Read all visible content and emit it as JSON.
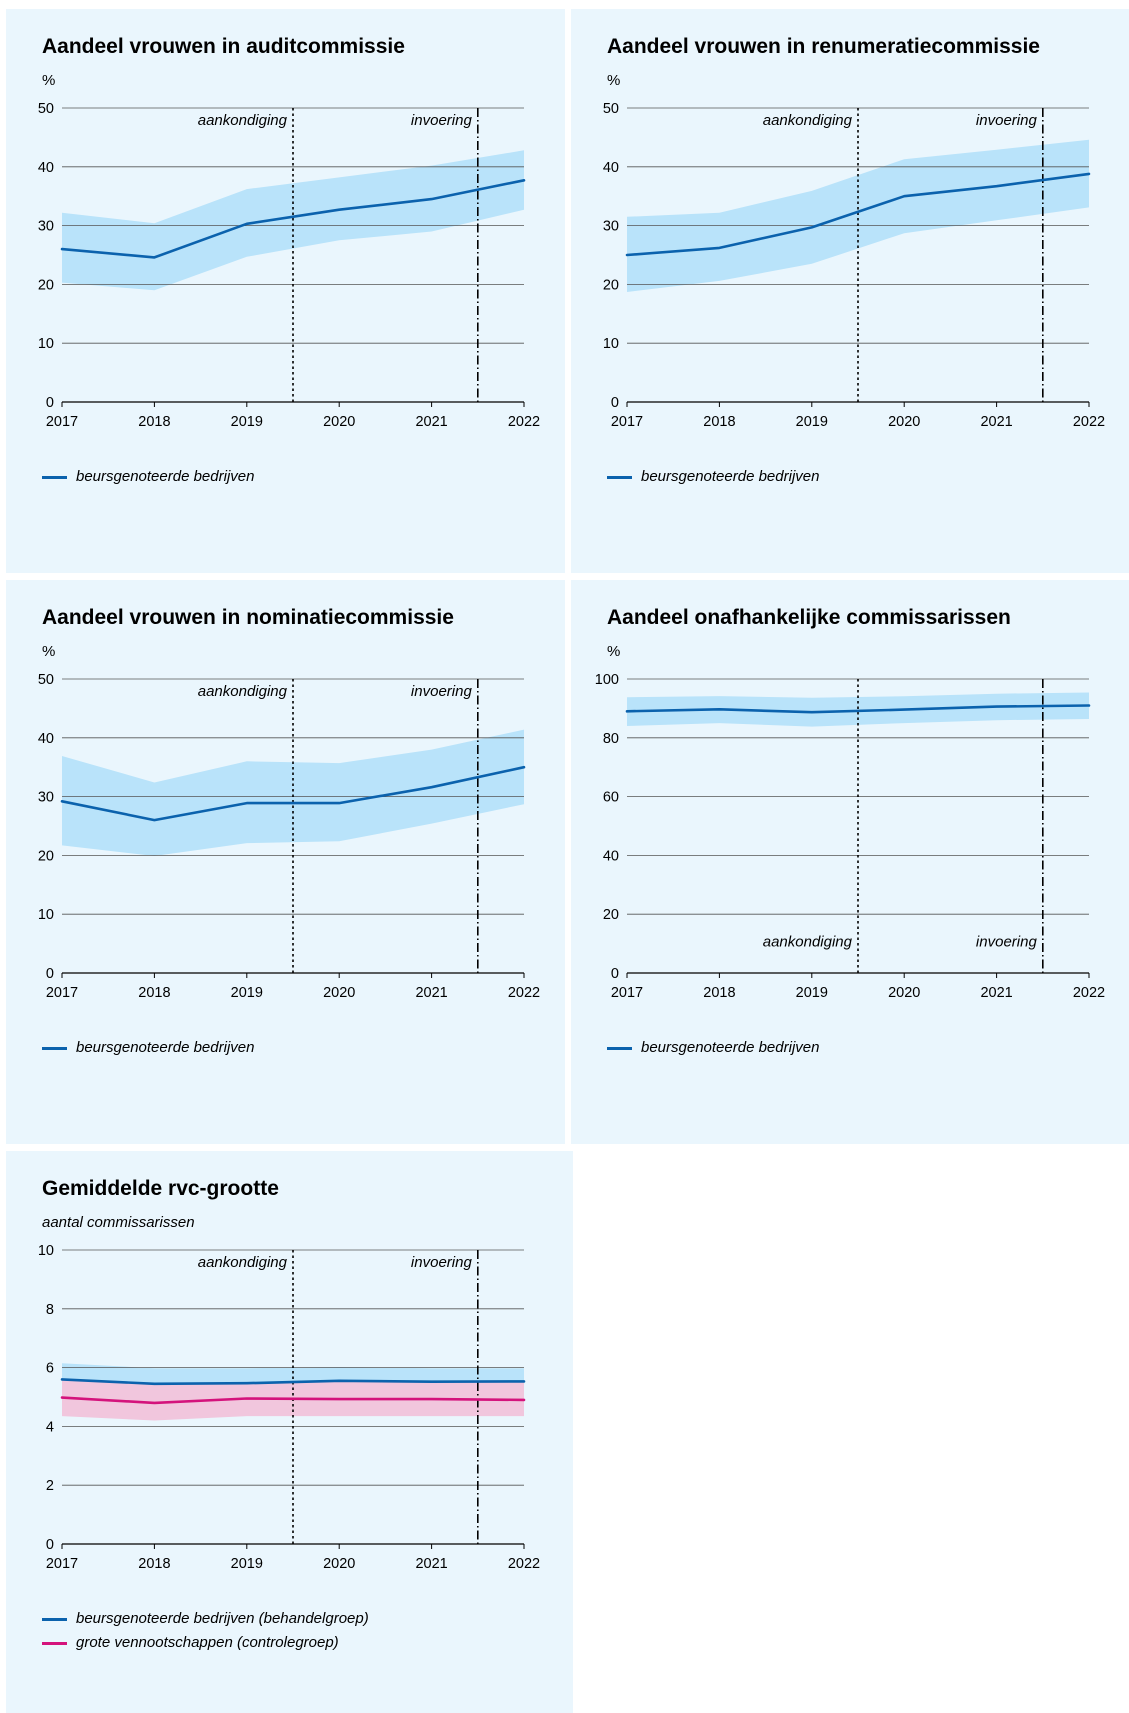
{
  "colors": {
    "panel_bg": "#eaf6fd",
    "band_blue": "#b9e3fa",
    "band_pink": "#f1c6dd",
    "line_blue": "#0b62ad",
    "line_pink": "#d4137c",
    "grid": "#555555"
  },
  "charts": [
    {
      "id": "audit",
      "title": "Aandeel vrouwen in auditcommissie",
      "unit": "%",
      "unit_italic": false,
      "legend": [
        {
          "label": "beursgenoteerde bedrijven",
          "color": "#0b62ad"
        }
      ],
      "chart_data": {
        "type": "line",
        "x": [
          2017,
          2018,
          2019,
          2020,
          2021,
          2022
        ],
        "ylim": [
          0,
          50
        ],
        "yticks": [
          0,
          10,
          20,
          30,
          40,
          50
        ],
        "series": [
          {
            "name": "beursgenoteerde bedrijven",
            "values": [
              26,
              24.6,
              30.3,
              32.7,
              34.5,
              37.7
            ],
            "band_low": [
              20.3,
              19,
              24.7,
              27.5,
              29,
              32.7
            ],
            "band_high": [
              32.2,
              30.4,
              36.2,
              38.2,
              40.2,
              42.8
            ],
            "color": "#0b62ad",
            "band_color": "#b9e3fa"
          }
        ],
        "vlines": [
          {
            "x": 2019.5,
            "label": "aankondiging",
            "style": "dotted"
          },
          {
            "x": 2021.5,
            "label": "invoering",
            "style": "dashdot"
          }
        ],
        "vlabel_position": "top"
      }
    },
    {
      "id": "remuneratie",
      "title": "Aandeel vrouwen in renumeratiecommissie",
      "unit": "%",
      "unit_italic": false,
      "legend": [
        {
          "label": "beursgenoteerde bedrijven",
          "color": "#0b62ad"
        }
      ],
      "chart_data": {
        "type": "line",
        "x": [
          2017,
          2018,
          2019,
          2020,
          2021,
          2022
        ],
        "ylim": [
          0,
          50
        ],
        "yticks": [
          0,
          10,
          20,
          30,
          40,
          50
        ],
        "series": [
          {
            "name": "beursgenoteerde bedrijven",
            "values": [
              25,
              26.2,
              29.7,
              35,
              36.7,
              38.8
            ],
            "band_low": [
              18.7,
              20.6,
              23.5,
              28.7,
              30.9,
              33.1
            ],
            "band_high": [
              31.5,
              32.2,
              35.9,
              41.3,
              42.9,
              44.6
            ],
            "color": "#0b62ad",
            "band_color": "#b9e3fa"
          }
        ],
        "vlines": [
          {
            "x": 2019.5,
            "label": "aankondiging",
            "style": "dotted"
          },
          {
            "x": 2021.5,
            "label": "invoering",
            "style": "dashdot"
          }
        ],
        "vlabel_position": "top"
      }
    },
    {
      "id": "nominatie",
      "title": "Aandeel vrouwen in nominatiecommissie",
      "unit": "%",
      "unit_italic": false,
      "legend": [
        {
          "label": "beursgenoteerde bedrijven",
          "color": "#0b62ad"
        }
      ],
      "chart_data": {
        "type": "line",
        "x": [
          2017,
          2018,
          2019,
          2020,
          2021,
          2022
        ],
        "ylim": [
          0,
          50
        ],
        "yticks": [
          0,
          10,
          20,
          30,
          40,
          50
        ],
        "series": [
          {
            "name": "beursgenoteerde bedrijven",
            "values": [
              29.2,
              26,
              28.9,
              28.9,
              31.6,
              35
            ],
            "band_low": [
              21.7,
              19.9,
              22.1,
              22.4,
              25.4,
              28.7
            ],
            "band_high": [
              36.9,
              32.4,
              36,
              35.7,
              38,
              41.4
            ],
            "color": "#0b62ad",
            "band_color": "#b9e3fa"
          }
        ],
        "vlines": [
          {
            "x": 2019.5,
            "label": "aankondiging",
            "style": "dotted"
          },
          {
            "x": 2021.5,
            "label": "invoering",
            "style": "dashdot"
          }
        ],
        "vlabel_position": "top"
      }
    },
    {
      "id": "onafhankelijk",
      "title": "Aandeel onafhankelijke commissarissen",
      "unit": "%",
      "unit_italic": false,
      "legend": [
        {
          "label": "beursgenoteerde bedrijven",
          "color": "#0b62ad"
        }
      ],
      "chart_data": {
        "type": "line",
        "x": [
          2017,
          2018,
          2019,
          2020,
          2021,
          2022
        ],
        "ylim": [
          0,
          100
        ],
        "yticks": [
          0,
          20,
          40,
          60,
          80,
          100
        ],
        "series": [
          {
            "name": "beursgenoteerde bedrijven",
            "values": [
              89,
              89.7,
              88.7,
              89.6,
              90.6,
              91
            ],
            "band_low": [
              84,
              85,
              83.8,
              85,
              86,
              86.4
            ],
            "band_high": [
              93.8,
              94.2,
              93.6,
              94.1,
              95,
              95.4
            ],
            "color": "#0b62ad",
            "band_color": "#b9e3fa"
          }
        ],
        "vlines": [
          {
            "x": 2019.5,
            "label": "aankondiging",
            "style": "dotted"
          },
          {
            "x": 2021.5,
            "label": "invoering",
            "style": "dashdot"
          }
        ],
        "vlabel_position": "bottom"
      }
    },
    {
      "id": "rvc",
      "title": "Gemiddelde rvc-grootte",
      "unit": "aantal commissarissen",
      "unit_italic": true,
      "legend": [
        {
          "label": "beursgenoteerde bedrijven (behandelgroep)",
          "color": "#0b62ad"
        },
        {
          "label": "grote vennootschappen (controlegroep)",
          "color": "#d4137c"
        }
      ],
      "chart_data": {
        "type": "line",
        "x": [
          2017,
          2018,
          2019,
          2020,
          2021,
          2022
        ],
        "ylim": [
          0,
          10
        ],
        "yticks": [
          0,
          2,
          4,
          6,
          8,
          10
        ],
        "series": [
          {
            "name": "beursgenoteerde bedrijven (behandelgroep)",
            "values": [
              5.6,
              5.45,
              5.47,
              5.55,
              5.52,
              5.53
            ],
            "band_low": [
              4.95,
              4.8,
              4.95,
              4.93,
              4.93,
              4.9
            ],
            "band_high": [
              6.15,
              5.98,
              5.98,
              6.02,
              5.98,
              5.98
            ],
            "color": "#0b62ad",
            "band_color": "#b9e3fa"
          },
          {
            "name": "grote vennootschappen (controlegroep)",
            "values": [
              4.98,
              4.8,
              4.95,
              4.93,
              4.93,
              4.9
            ],
            "band_low": [
              4.35,
              4.2,
              4.35,
              4.35,
              4.35,
              4.35
            ],
            "band_high": [
              5.6,
              5.45,
              5.47,
              5.55,
              5.52,
              5.53
            ],
            "color": "#d4137c",
            "band_color": "#f1c6dd"
          }
        ],
        "vlines": [
          {
            "x": 2019.5,
            "label": "aankondiging",
            "style": "dotted"
          },
          {
            "x": 2021.5,
            "label": "invoering",
            "style": "dashdot"
          }
        ],
        "vlabel_position": "top"
      }
    }
  ]
}
